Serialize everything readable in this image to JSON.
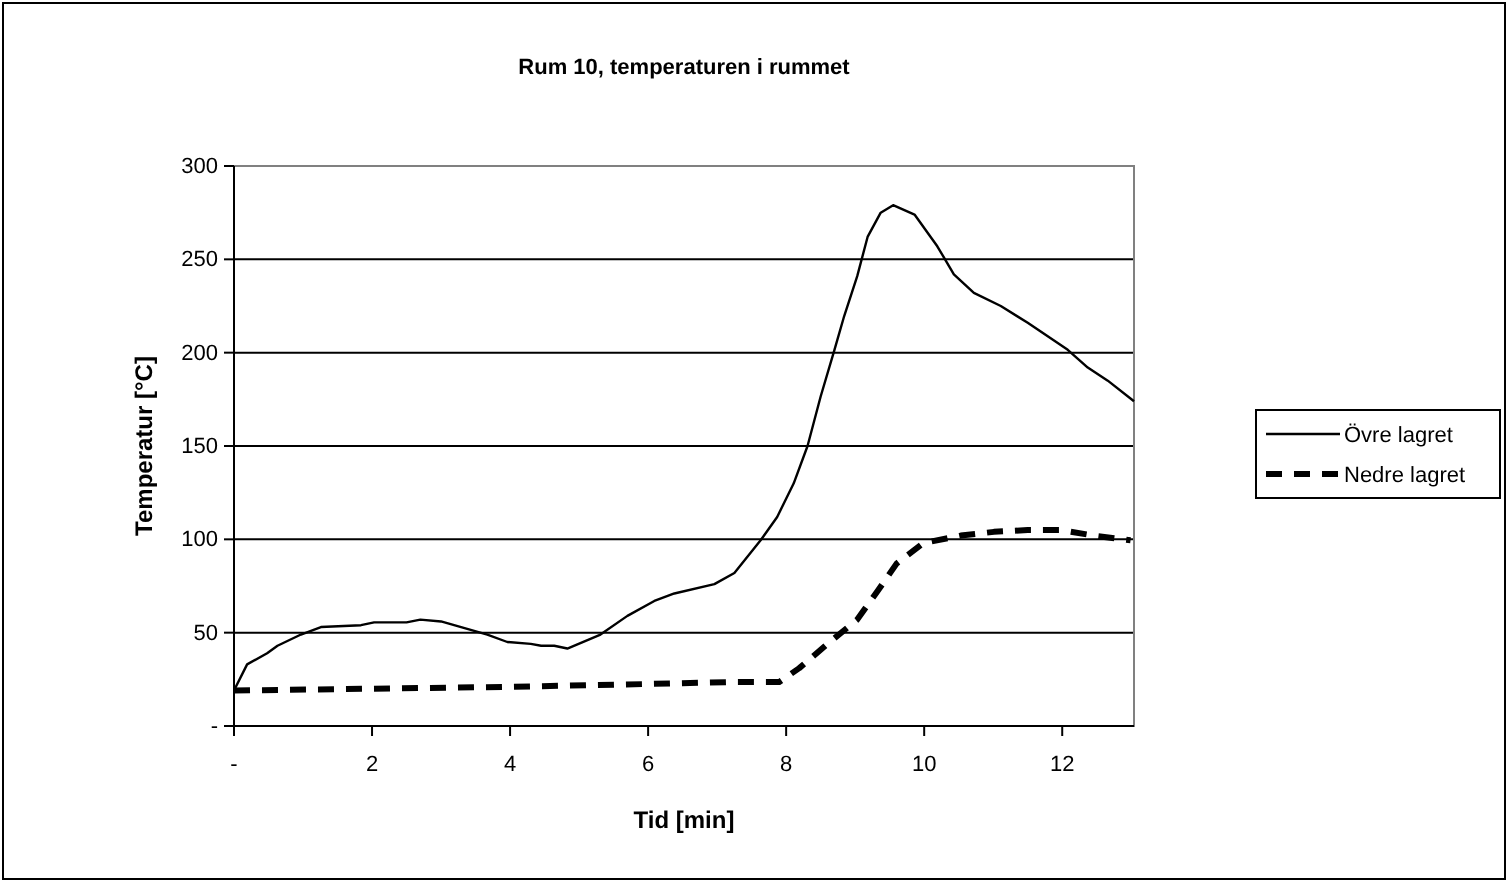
{
  "chart_data": {
    "type": "line",
    "title": "Rum 10, temperaturen i rummet",
    "xlabel": "Tid [min]",
    "ylabel": "Temperatur [°C]",
    "xlim": [
      0,
      13.04
    ],
    "xticks": [
      {
        "value": 0,
        "label": "-"
      },
      2,
      4,
      6,
      8,
      10,
      12
    ],
    "ylim": [
      0,
      300
    ],
    "yticks": [
      {
        "value": 0,
        "label": "-"
      },
      50,
      100,
      150,
      200,
      250,
      300
    ],
    "grid": "y",
    "legend": "right",
    "marker": "none",
    "series": [
      {
        "name": "Övre lagret",
        "color": "#000000",
        "line_style": "solid",
        "x": [
          0,
          0.19,
          0.48,
          0.63,
          0.97,
          1.26,
          1.84,
          2.03,
          2.5,
          2.7,
          3.0,
          3.67,
          3.96,
          4.3,
          4.45,
          4.64,
          4.83,
          5.31,
          5.7,
          6.09,
          6.38,
          6.96,
          7.25,
          7.63,
          7.87,
          8.11,
          8.31,
          8.5,
          8.7,
          8.84,
          9.03,
          9.18,
          9.37,
          9.55,
          9.86,
          10.19,
          10.43,
          10.72,
          11.11,
          11.5,
          12.08,
          12.37,
          12.66,
          13.04
        ],
        "values": [
          19,
          33,
          39,
          43,
          49,
          53,
          54,
          55.5,
          55.5,
          57,
          56,
          49,
          45,
          44,
          43,
          43,
          41.5,
          49,
          59,
          67,
          71,
          76,
          82,
          99.5,
          112,
          130,
          150,
          176.5,
          201.5,
          219.5,
          241,
          262,
          275,
          279,
          274,
          257,
          242,
          232,
          225,
          216,
          201.5,
          192,
          185,
          174
        ]
      },
      {
        "name": "Nedre lagret",
        "color": "#000000",
        "line_style": "dashed",
        "x": [
          0,
          2,
          4,
          6,
          7.25,
          7.9,
          8.19,
          8.6,
          9.03,
          9.32,
          9.6,
          9.99,
          10.53,
          11.01,
          11.5,
          11.98,
          12.46,
          12.99
        ],
        "values": [
          19,
          20,
          21,
          22.5,
          23.6,
          23.6,
          31,
          44,
          57,
          72,
          87,
          98,
          102,
          104,
          105,
          105,
          102,
          99.5
        ]
      }
    ]
  }
}
